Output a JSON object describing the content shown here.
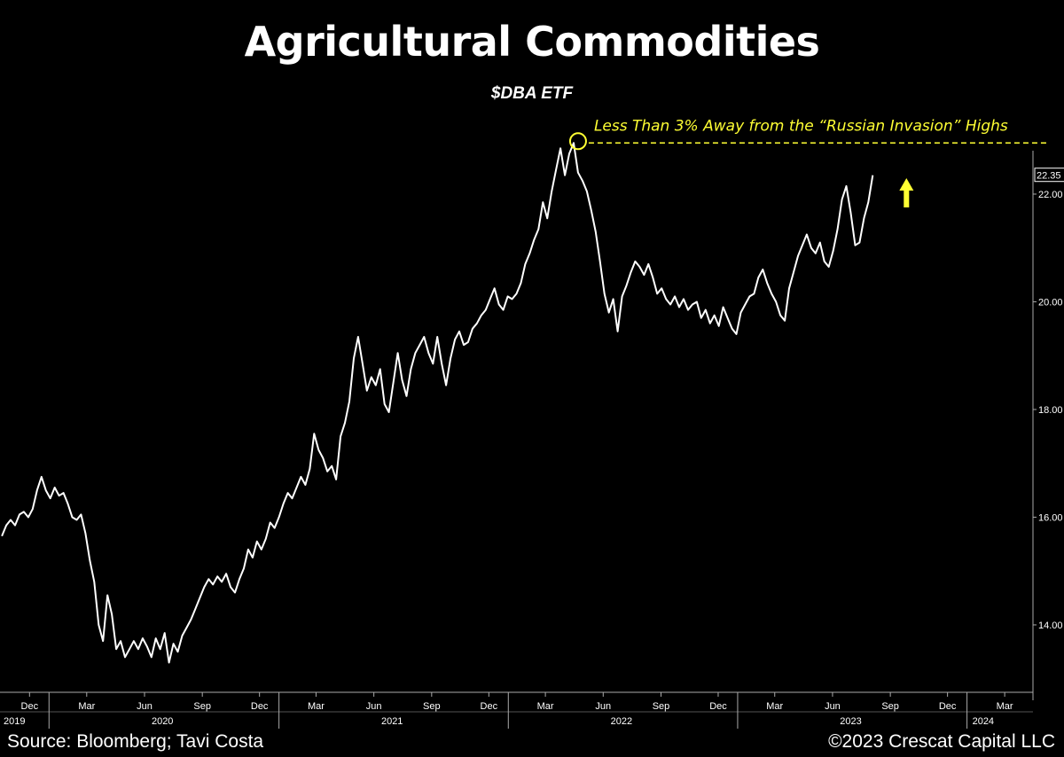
{
  "footer": {
    "source": "Source: Bloomberg; Tavi Costa",
    "copyright": "©2023 Crescat Capital LLC"
  },
  "colors": {
    "background": "#000000",
    "line": "#ffffff",
    "annotation": "#ffff33",
    "axis": "#aaaaaa"
  },
  "chart_data": {
    "type": "line",
    "title": "Agricultural Commodities",
    "subtitle": "$DBA ETF",
    "xlabel": "",
    "ylabel": "",
    "ylim": [
      12.6,
      23.3
    ],
    "xlim": [
      "2019-10-15",
      "2024-04-15"
    ],
    "y_ticks": [
      "14.00",
      "16.00",
      "18.00",
      "20.00",
      "22.00"
    ],
    "x_month_ticks": [
      {
        "label": "Dec",
        "date": "2019-12-01"
      },
      {
        "label": "Mar",
        "date": "2020-03-01"
      },
      {
        "label": "Jun",
        "date": "2020-06-01"
      },
      {
        "label": "Sep",
        "date": "2020-09-01"
      },
      {
        "label": "Dec",
        "date": "2020-12-01"
      },
      {
        "label": "Mar",
        "date": "2021-03-01"
      },
      {
        "label": "Jun",
        "date": "2021-06-01"
      },
      {
        "label": "Sep",
        "date": "2021-09-01"
      },
      {
        "label": "Dec",
        "date": "2021-12-01"
      },
      {
        "label": "Mar",
        "date": "2022-03-01"
      },
      {
        "label": "Jun",
        "date": "2022-06-01"
      },
      {
        "label": "Sep",
        "date": "2022-09-01"
      },
      {
        "label": "Dec",
        "date": "2022-12-01"
      },
      {
        "label": "Mar",
        "date": "2023-03-01"
      },
      {
        "label": "Jun",
        "date": "2023-06-01"
      },
      {
        "label": "Sep",
        "date": "2023-09-01"
      },
      {
        "label": "Dec",
        "date": "2023-12-01"
      },
      {
        "label": "Mar",
        "date": "2024-03-01"
      }
    ],
    "x_year_ticks": [
      {
        "label": "2019",
        "date": "2019-10-15"
      },
      {
        "label": "2020",
        "date": "2020-01-01"
      },
      {
        "label": "2021",
        "date": "2021-01-01"
      },
      {
        "label": "2022",
        "date": "2022-01-01"
      },
      {
        "label": "2023",
        "date": "2023-01-01"
      },
      {
        "label": "2024",
        "date": "2024-01-01"
      }
    ],
    "last_value_label": "22.35",
    "last_value": 22.35,
    "annotation": {
      "text": "Less Than 3% Away from the “Russian Invasion” Highs",
      "level": 22.95,
      "peak_date": "2022-04-22",
      "peak_value": 22.95
    },
    "series": [
      {
        "x": [
          "2019-10-18",
          "2019-10-25",
          "2019-11-01",
          "2019-11-08",
          "2019-11-15",
          "2019-11-22",
          "2019-11-29",
          "2019-12-06",
          "2019-12-13",
          "2019-12-20",
          "2019-12-27",
          "2020-01-03",
          "2020-01-10",
          "2020-01-17",
          "2020-01-24",
          "2020-01-31",
          "2020-02-07",
          "2020-02-14",
          "2020-02-21",
          "2020-02-28",
          "2020-03-06",
          "2020-03-13",
          "2020-03-20",
          "2020-03-27",
          "2020-04-03",
          "2020-04-10",
          "2020-04-17",
          "2020-04-24",
          "2020-05-01",
          "2020-05-08",
          "2020-05-15",
          "2020-05-22",
          "2020-05-29",
          "2020-06-05",
          "2020-06-12",
          "2020-06-19",
          "2020-06-26",
          "2020-07-03",
          "2020-07-10",
          "2020-07-17",
          "2020-07-24",
          "2020-07-31",
          "2020-08-07",
          "2020-08-14",
          "2020-08-21",
          "2020-08-28",
          "2020-09-04",
          "2020-09-11",
          "2020-09-18",
          "2020-09-25",
          "2020-10-02",
          "2020-10-09",
          "2020-10-16",
          "2020-10-23",
          "2020-10-30",
          "2020-11-06",
          "2020-11-13",
          "2020-11-20",
          "2020-11-27",
          "2020-12-04",
          "2020-12-11",
          "2020-12-18",
          "2020-12-25",
          "2021-01-01",
          "2021-01-08",
          "2021-01-15",
          "2021-01-22",
          "2021-01-29",
          "2021-02-05",
          "2021-02-12",
          "2021-02-19",
          "2021-02-26",
          "2021-03-05",
          "2021-03-12",
          "2021-03-19",
          "2021-03-26",
          "2021-04-02",
          "2021-04-09",
          "2021-04-16",
          "2021-04-23",
          "2021-04-30",
          "2021-05-07",
          "2021-05-14",
          "2021-05-21",
          "2021-05-28",
          "2021-06-04",
          "2021-06-11",
          "2021-06-18",
          "2021-06-25",
          "2021-07-02",
          "2021-07-09",
          "2021-07-16",
          "2021-07-23",
          "2021-07-30",
          "2021-08-06",
          "2021-08-13",
          "2021-08-20",
          "2021-08-27",
          "2021-09-03",
          "2021-09-10",
          "2021-09-17",
          "2021-09-24",
          "2021-10-01",
          "2021-10-08",
          "2021-10-15",
          "2021-10-22",
          "2021-10-29",
          "2021-11-05",
          "2021-11-12",
          "2021-11-19",
          "2021-11-26",
          "2021-12-03",
          "2021-12-10",
          "2021-12-17",
          "2021-12-24",
          "2021-12-31",
          "2022-01-07",
          "2022-01-14",
          "2022-01-21",
          "2022-01-28",
          "2022-02-04",
          "2022-02-11",
          "2022-02-18",
          "2022-02-25",
          "2022-03-04",
          "2022-03-11",
          "2022-03-18",
          "2022-03-25",
          "2022-04-01",
          "2022-04-08",
          "2022-04-15",
          "2022-04-22",
          "2022-04-29",
          "2022-05-06",
          "2022-05-13",
          "2022-05-20",
          "2022-05-27",
          "2022-06-03",
          "2022-06-10",
          "2022-06-17",
          "2022-06-24",
          "2022-07-01",
          "2022-07-08",
          "2022-07-15",
          "2022-07-22",
          "2022-07-29",
          "2022-08-05",
          "2022-08-12",
          "2022-08-19",
          "2022-08-26",
          "2022-09-02",
          "2022-09-09",
          "2022-09-16",
          "2022-09-23",
          "2022-09-30",
          "2022-10-07",
          "2022-10-14",
          "2022-10-21",
          "2022-10-28",
          "2022-11-04",
          "2022-11-11",
          "2022-11-18",
          "2022-11-25",
          "2022-12-02",
          "2022-12-09",
          "2022-12-16",
          "2022-12-23",
          "2022-12-30",
          "2023-01-06",
          "2023-01-13",
          "2023-01-20",
          "2023-01-27",
          "2023-02-03",
          "2023-02-10",
          "2023-02-17",
          "2023-02-24",
          "2023-03-03",
          "2023-03-10",
          "2023-03-17",
          "2023-03-24",
          "2023-03-31",
          "2023-04-07",
          "2023-04-14",
          "2023-04-21",
          "2023-04-28",
          "2023-05-05",
          "2023-05-12",
          "2023-05-19",
          "2023-05-26",
          "2023-06-02",
          "2023-06-09",
          "2023-06-16",
          "2023-06-23",
          "2023-06-30",
          "2023-07-07",
          "2023-07-14",
          "2023-07-21",
          "2023-07-28",
          "2023-08-04"
        ],
        "values": [
          15.65,
          15.85,
          15.95,
          15.85,
          16.05,
          16.1,
          16.0,
          16.15,
          16.5,
          16.75,
          16.5,
          16.35,
          16.55,
          16.4,
          16.45,
          16.25,
          16.0,
          15.95,
          16.05,
          15.7,
          15.2,
          14.8,
          14.0,
          13.7,
          14.55,
          14.2,
          13.55,
          13.7,
          13.4,
          13.55,
          13.7,
          13.55,
          13.75,
          13.6,
          13.4,
          13.75,
          13.55,
          13.85,
          13.3,
          13.65,
          13.5,
          13.8,
          13.95,
          14.1,
          14.3,
          14.5,
          14.7,
          14.85,
          14.75,
          14.9,
          14.8,
          14.95,
          14.7,
          14.6,
          14.85,
          15.05,
          15.4,
          15.25,
          15.55,
          15.4,
          15.6,
          15.9,
          15.8,
          16.0,
          16.25,
          16.45,
          16.35,
          16.55,
          16.75,
          16.6,
          16.9,
          17.55,
          17.25,
          17.1,
          16.85,
          16.95,
          16.7,
          17.5,
          17.75,
          18.15,
          18.95,
          19.35,
          18.85,
          18.35,
          18.6,
          18.45,
          18.75,
          18.1,
          17.95,
          18.5,
          19.05,
          18.55,
          18.25,
          18.75,
          19.05,
          19.2,
          19.35,
          19.05,
          18.85,
          19.35,
          18.85,
          18.45,
          18.95,
          19.3,
          19.45,
          19.2,
          19.25,
          19.5,
          19.6,
          19.75,
          19.85,
          20.05,
          20.25,
          19.95,
          19.85,
          20.1,
          20.05,
          20.15,
          20.35,
          20.7,
          20.9,
          21.15,
          21.35,
          21.85,
          21.55,
          22.05,
          22.45,
          22.85,
          22.35,
          22.75,
          22.95,
          22.4,
          22.25,
          22.05,
          21.7,
          21.3,
          20.75,
          20.15,
          19.8,
          20.05,
          19.45,
          20.1,
          20.3,
          20.55,
          20.75,
          20.65,
          20.5,
          20.7,
          20.45,
          20.15,
          20.25,
          20.05,
          19.95,
          20.1,
          19.9,
          20.05,
          19.85,
          19.95,
          20.0,
          19.7,
          19.85,
          19.6,
          19.75,
          19.55,
          19.9,
          19.7,
          19.5,
          19.4,
          19.8,
          19.95,
          20.1,
          20.15,
          20.45,
          20.6,
          20.35,
          20.15,
          20.0,
          19.75,
          19.65,
          20.25,
          20.55,
          20.85,
          21.05,
          21.25,
          21.0,
          20.9,
          21.1,
          20.75,
          20.65,
          20.95,
          21.35,
          21.9,
          22.15,
          21.65,
          21.05,
          21.1,
          21.55,
          21.85,
          22.35
        ]
      }
    ]
  }
}
